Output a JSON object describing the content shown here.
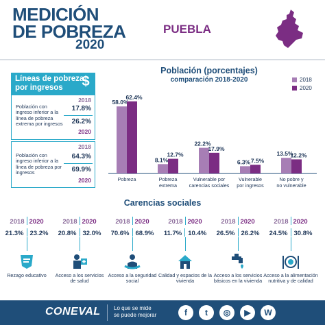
{
  "header": {
    "brand_line1": "MEDICIÓN",
    "brand_line2": "DE POBREZA",
    "brand_year": "2020",
    "state": "PUEBLA"
  },
  "poverty_lines": {
    "title": "Líneas de pobreza por ingresos",
    "currency_symbol": "$",
    "items": [
      {
        "desc": "Población con ingreso inferior a la línea de pobreza extrema por ingresos",
        "year_a": "2018",
        "value_a": "17.8%",
        "value_b": "26.2%",
        "year_b": "2020"
      },
      {
        "desc": "Población con ingreso inferior a la línea de pobreza por ingresos",
        "year_a": "2018",
        "value_a": "64.3%",
        "value_b": "69.9%",
        "year_b": "2020"
      }
    ]
  },
  "chart_data": {
    "type": "bar",
    "title": "Población (porcentajes)",
    "subtitle": "comparación 2018-2020",
    "categories": [
      "Pobreza",
      "Pobreza extrema",
      "Vulnerable por carencias sociales",
      "Vulnerable por ingresos",
      "No pobre y no vulnerable"
    ],
    "category_lines": [
      [
        "Pobreza"
      ],
      [
        "Pobreza",
        "extrema"
      ],
      [
        "Vulnerable por",
        "carencias sociales"
      ],
      [
        "Vulnerable",
        "por ingresos"
      ],
      [
        "No pobre y",
        "no vulnerable"
      ]
    ],
    "series": [
      {
        "name": "2018",
        "values": [
          58.0,
          8.1,
          22.2,
          6.3,
          13.5
        ],
        "labels": [
          "58.0%",
          "8.1%",
          "22.2%",
          "6.3%",
          "13.5%"
        ],
        "color": "#a77eb5"
      },
      {
        "name": "2020",
        "values": [
          62.4,
          12.7,
          17.9,
          7.5,
          12.2
        ],
        "labels": [
          "62.4%",
          "12.7%",
          "17.9%",
          "7.5%",
          "12.2%"
        ],
        "color": "#7b2d83"
      }
    ],
    "ylim": [
      0,
      70
    ],
    "legend": "top-right",
    "grid": false
  },
  "carencias": {
    "title": "Carencias sociales",
    "year_a": "2018",
    "year_b": "2020",
    "items": [
      {
        "a": "21.3%",
        "b": "23.2%",
        "label": "Rezago educativo",
        "icon": "education-icon"
      },
      {
        "a": "20.8%",
        "b": "32.0%",
        "label": "Acceso a los servicios de salud",
        "icon": "health-icon"
      },
      {
        "a": "70.6%",
        "b": "68.9%",
        "label": "Acceso a la seguridad social",
        "icon": "social-security-icon"
      },
      {
        "a": "11.7%",
        "b": "10.4%",
        "label": "Calidad y espacios de la vivienda",
        "icon": "house-icon"
      },
      {
        "a": "26.5%",
        "b": "26.2%",
        "label": "Acceso a los servicios básicos en la vivienda",
        "icon": "faucet-icon"
      },
      {
        "a": "24.5%",
        "b": "30.8%",
        "label": "Acceso a la alimentación nutritiva y de calidad",
        "icon": "food-icon"
      }
    ]
  },
  "footer": {
    "brand": "CONEVAL",
    "slogan_line1": "Lo que se mide",
    "slogan_line2": "se puede mejorar",
    "social": [
      "f",
      "t",
      "◎",
      "▶",
      "W"
    ]
  },
  "colors": {
    "navy": "#1f4e79",
    "purple": "#7b2d83",
    "lilac": "#a77eb5",
    "teal": "#2aa9c9"
  }
}
